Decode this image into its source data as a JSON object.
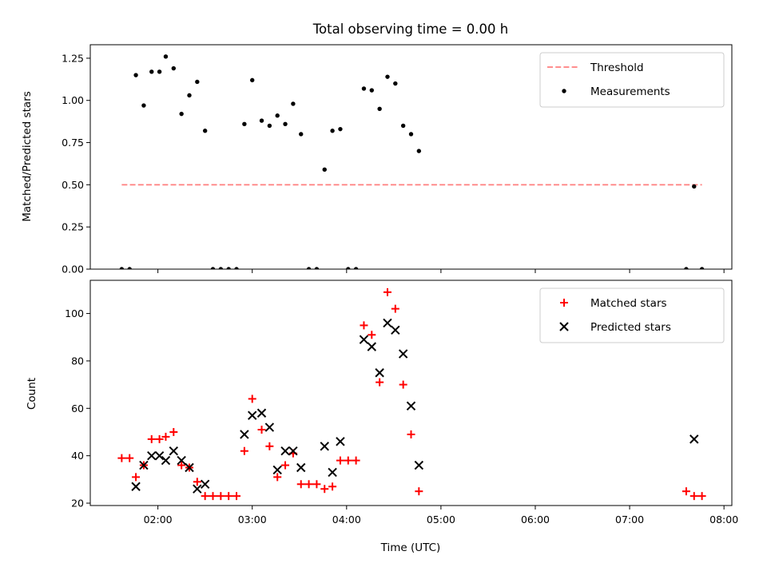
{
  "chart_data": [
    {
      "type": "scatter",
      "title": "Total observing time = 0.00 h",
      "xlabel": "",
      "ylabel": "Matched/Predicted stars",
      "xlim": [
        "01:17",
        "08:05"
      ],
      "ylim": [
        0,
        1.33
      ],
      "yticks": [
        0.0,
        0.25,
        0.5,
        0.75,
        1.0,
        1.25
      ],
      "ytick_labels": [
        "0.00",
        "0.25",
        "0.50",
        "0.75",
        "1.00",
        "1.25"
      ],
      "legend": "top-right",
      "series": [
        {
          "name": "Threshold",
          "kind": "dashed-line",
          "color": "#ff7f7f",
          "points": [
            [
              "01:37",
              0.5
            ],
            [
              "07:46",
              0.5
            ]
          ]
        },
        {
          "name": "Measurements",
          "kind": "dot",
          "color": "#000000",
          "points": [
            [
              "01:37",
              0.0
            ],
            [
              "01:42",
              0.0
            ],
            [
              "01:46",
              1.15
            ],
            [
              "01:51",
              0.97
            ],
            [
              "01:56",
              1.17
            ],
            [
              "02:01",
              1.17
            ],
            [
              "02:05",
              1.26
            ],
            [
              "02:10",
              1.19
            ],
            [
              "02:15",
              0.92
            ],
            [
              "02:20",
              1.03
            ],
            [
              "02:25",
              1.11
            ],
            [
              "02:30",
              0.82
            ],
            [
              "02:35",
              0.0
            ],
            [
              "02:40",
              0.0
            ],
            [
              "02:45",
              0.0
            ],
            [
              "02:50",
              0.0
            ],
            [
              "02:55",
              0.86
            ],
            [
              "03:00",
              1.12
            ],
            [
              "03:06",
              0.88
            ],
            [
              "03:11",
              0.85
            ],
            [
              "03:16",
              0.91
            ],
            [
              "03:21",
              0.86
            ],
            [
              "03:26",
              0.98
            ],
            [
              "03:31",
              0.8
            ],
            [
              "03:36",
              0.0
            ],
            [
              "03:41",
              0.0
            ],
            [
              "03:46",
              0.59
            ],
            [
              "03:51",
              0.82
            ],
            [
              "03:56",
              0.83
            ],
            [
              "04:01",
              0.0
            ],
            [
              "04:06",
              0.0
            ],
            [
              "04:11",
              1.07
            ],
            [
              "04:16",
              1.06
            ],
            [
              "04:21",
              0.95
            ],
            [
              "04:26",
              1.14
            ],
            [
              "04:31",
              1.1
            ],
            [
              "04:36",
              0.85
            ],
            [
              "04:41",
              0.8
            ],
            [
              "04:46",
              0.7
            ],
            [
              "07:36",
              0.0
            ],
            [
              "07:41",
              0.49
            ],
            [
              "07:46",
              0.0
            ]
          ]
        }
      ]
    },
    {
      "type": "scatter",
      "title": "",
      "xlabel": "Time (UTC)",
      "ylabel": "Count",
      "xlim": [
        "01:17",
        "08:05"
      ],
      "ylim": [
        19,
        114
      ],
      "yticks": [
        20,
        40,
        60,
        80,
        100
      ],
      "ytick_labels": [
        "20",
        "40",
        "60",
        "80",
        "100"
      ],
      "xtick_labels": [
        "02:00",
        "03:00",
        "04:00",
        "05:00",
        "06:00",
        "07:00",
        "08:00"
      ],
      "legend": "top-right",
      "series": [
        {
          "name": "Matched stars",
          "kind": "plus",
          "color": "#ff0000",
          "points": [
            [
              "01:37",
              39
            ],
            [
              "01:42",
              39
            ],
            [
              "01:46",
              31
            ],
            [
              "01:51",
              36
            ],
            [
              "01:56",
              47
            ],
            [
              "02:01",
              47
            ],
            [
              "02:05",
              48
            ],
            [
              "02:10",
              50
            ],
            [
              "02:15",
              36
            ],
            [
              "02:20",
              35
            ],
            [
              "02:25",
              29
            ],
            [
              "02:30",
              23
            ],
            [
              "02:35",
              23
            ],
            [
              "02:40",
              23
            ],
            [
              "02:45",
              23
            ],
            [
              "02:50",
              23
            ],
            [
              "02:55",
              42
            ],
            [
              "03:00",
              64
            ],
            [
              "03:06",
              51
            ],
            [
              "03:11",
              44
            ],
            [
              "03:16",
              31
            ],
            [
              "03:21",
              36
            ],
            [
              "03:26",
              41
            ],
            [
              "03:31",
              28
            ],
            [
              "03:36",
              28
            ],
            [
              "03:41",
              28
            ],
            [
              "03:46",
              26
            ],
            [
              "03:51",
              27
            ],
            [
              "03:56",
              38
            ],
            [
              "04:01",
              38
            ],
            [
              "04:06",
              38
            ],
            [
              "04:11",
              95
            ],
            [
              "04:16",
              91
            ],
            [
              "04:21",
              71
            ],
            [
              "04:26",
              109
            ],
            [
              "04:31",
              102
            ],
            [
              "04:36",
              70
            ],
            [
              "04:41",
              49
            ],
            [
              "04:46",
              25
            ],
            [
              "07:36",
              25
            ],
            [
              "07:41",
              23
            ],
            [
              "07:46",
              23
            ]
          ]
        },
        {
          "name": "Predicted stars",
          "kind": "x",
          "color": "#000000",
          "points": [
            [
              "01:46",
              27
            ],
            [
              "01:51",
              36
            ],
            [
              "01:56",
              40
            ],
            [
              "02:01",
              40
            ],
            [
              "02:05",
              38
            ],
            [
              "02:10",
              42
            ],
            [
              "02:15",
              38
            ],
            [
              "02:20",
              35
            ],
            [
              "02:25",
              26
            ],
            [
              "02:30",
              28
            ],
            [
              "02:55",
              49
            ],
            [
              "03:00",
              57
            ],
            [
              "03:06",
              58
            ],
            [
              "03:11",
              52
            ],
            [
              "03:16",
              34
            ],
            [
              "03:21",
              42
            ],
            [
              "03:26",
              42
            ],
            [
              "03:31",
              35
            ],
            [
              "03:46",
              44
            ],
            [
              "03:51",
              33
            ],
            [
              "03:56",
              46
            ],
            [
              "04:11",
              89
            ],
            [
              "04:16",
              86
            ],
            [
              "04:21",
              75
            ],
            [
              "04:26",
              96
            ],
            [
              "04:31",
              93
            ],
            [
              "04:36",
              83
            ],
            [
              "04:41",
              61
            ],
            [
              "04:46",
              36
            ],
            [
              "07:41",
              47
            ]
          ]
        }
      ]
    }
  ]
}
